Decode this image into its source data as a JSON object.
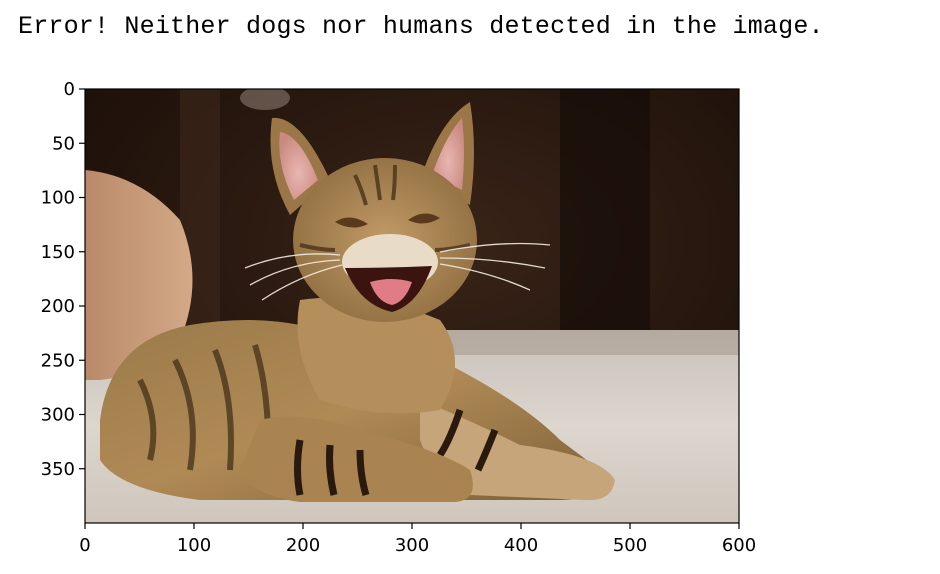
{
  "output": {
    "message": "Error! Neither dogs nor humans detected in the image."
  },
  "chart_data": {
    "type": "image",
    "title": "",
    "xlabel": "",
    "ylabel": "",
    "image_content": "tabby-kitten-photo",
    "xlim": [
      0,
      600
    ],
    "ylim": [
      400,
      0
    ],
    "xticks": [
      0,
      100,
      200,
      300,
      400,
      500,
      600
    ],
    "yticks": [
      0,
      50,
      100,
      150,
      200,
      250,
      300,
      350
    ],
    "grid": false
  }
}
